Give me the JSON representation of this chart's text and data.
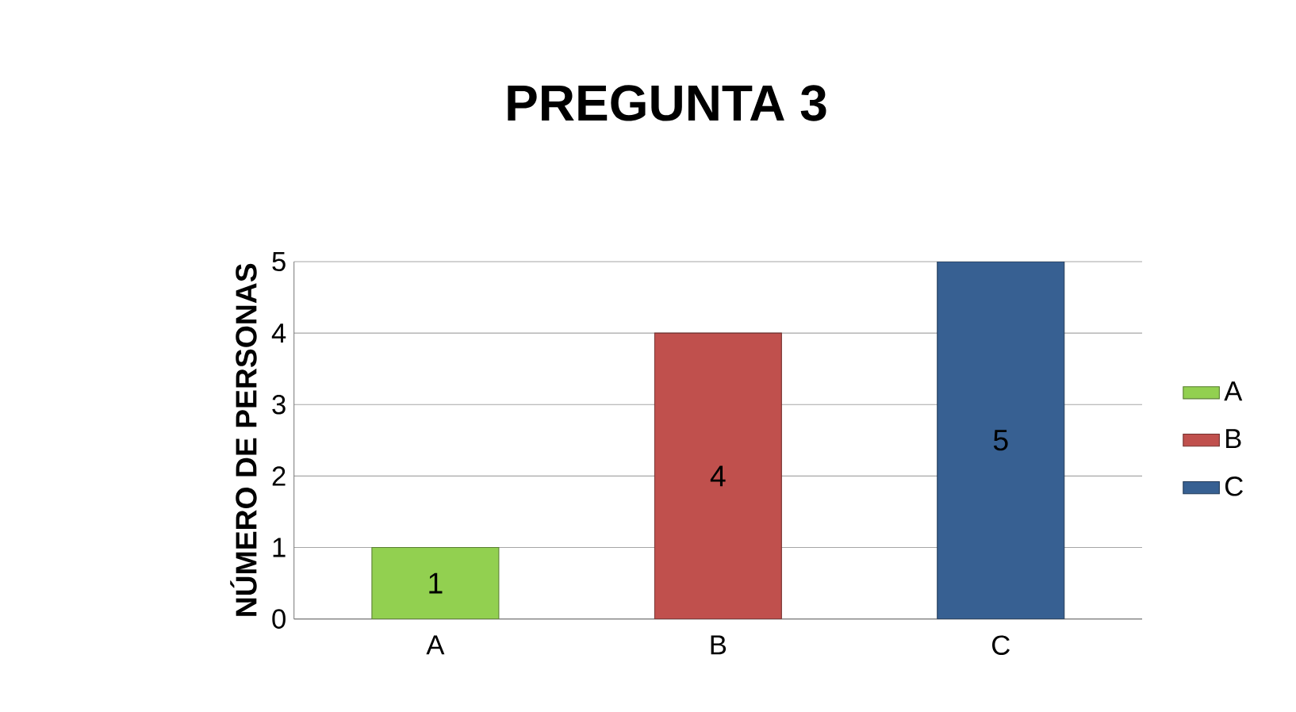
{
  "chart_data": {
    "type": "bar",
    "title": "PREGUNTA 3",
    "ylabel": "NÚMERO DE PERSONAS",
    "categories": [
      "A",
      "B",
      "C"
    ],
    "series": [
      {
        "name": "A",
        "color": "#92d050",
        "values": [
          1,
          null,
          null
        ]
      },
      {
        "name": "B",
        "color": "#c0504d",
        "values": [
          null,
          4,
          null
        ]
      },
      {
        "name": "C",
        "color": "#376092",
        "values": [
          null,
          null,
          5
        ]
      }
    ],
    "ylim": [
      0,
      5
    ],
    "yticks": [
      0,
      1,
      2,
      3,
      4,
      5
    ],
    "grid": "y",
    "legend": "right",
    "data_labels": true
  }
}
